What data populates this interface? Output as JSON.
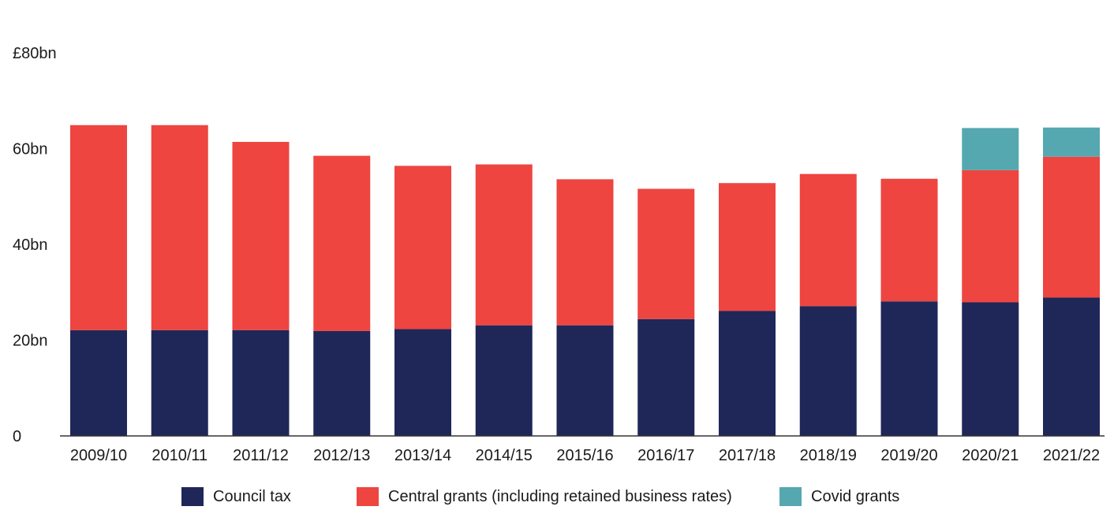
{
  "chart_data": {
    "type": "bar",
    "stacked": true,
    "categories": [
      "2009/10",
      "2010/11",
      "2011/12",
      "2012/13",
      "2013/14",
      "2014/15",
      "2015/16",
      "2016/17",
      "2017/18",
      "2018/19",
      "2019/20",
      "2020/21",
      "2021/22"
    ],
    "series": [
      {
        "name": "Council tax",
        "color": "#1f2759",
        "values": [
          22.1,
          22.1,
          22.1,
          21.9,
          22.3,
          23.1,
          23.1,
          24.4,
          26.1,
          27.1,
          28.1,
          27.9,
          28.9
        ]
      },
      {
        "name": "Central grants (including retained business rates)",
        "color": "#ee4540",
        "values": [
          42.8,
          42.8,
          39.3,
          36.6,
          34.1,
          33.6,
          30.5,
          27.2,
          26.7,
          27.6,
          25.6,
          27.6,
          29.4
        ]
      },
      {
        "name": "Covid grants",
        "color": "#55a8b0",
        "values": [
          0,
          0,
          0,
          0,
          0,
          0,
          0,
          0,
          0,
          0,
          0,
          8.8,
          6.1
        ]
      }
    ],
    "y_ticks": [
      {
        "value": 0,
        "label": "0"
      },
      {
        "value": 20,
        "label": "20bn"
      },
      {
        "value": 40,
        "label": "40bn"
      },
      {
        "value": 60,
        "label": "60bn"
      },
      {
        "value": 80,
        "label": "£80bn"
      }
    ],
    "ylim": [
      0,
      80
    ],
    "grid": false,
    "legend_position": "bottom"
  }
}
